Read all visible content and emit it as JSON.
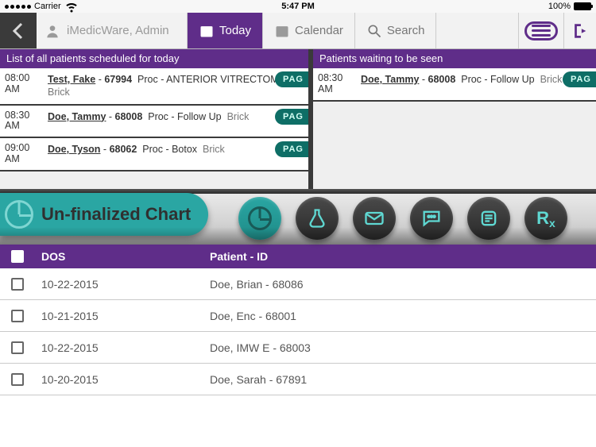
{
  "status": {
    "carrier": "Carrier",
    "wifi": "wifi",
    "time": "5:47 PM",
    "battery": "100%"
  },
  "nav": {
    "user": "iMedicWare, Admin",
    "today": "Today",
    "calendar": "Calendar",
    "search": "Search"
  },
  "headers": {
    "left": "List of all patients scheduled for today",
    "right": "Patients waiting to be seen"
  },
  "appointments_left": [
    {
      "time": "08:00 AM",
      "patient": "Test, Fake",
      "id": "67994",
      "proc": "Proc - ANTERIOR VITRECTOMY",
      "loc": "Brick",
      "tag": "PAG"
    },
    {
      "time": "08:30 AM",
      "patient": "Doe, Tammy",
      "id": "68008",
      "proc": "Proc - Follow Up",
      "loc": "Brick",
      "tag": "PAG"
    },
    {
      "time": "09:00 AM",
      "patient": "Doe, Tyson",
      "id": "68062",
      "proc": "Proc - Botox",
      "loc": "Brick",
      "tag": "PAG"
    }
  ],
  "appointments_right": [
    {
      "time": "08:30 AM",
      "patient": "Doe, Tammy",
      "id": "68008",
      "proc": "Proc - Follow Up",
      "loc": "Brick",
      "tag": "PAG"
    }
  ],
  "band": {
    "label": "Un-finalized Chart",
    "icons": [
      "chart",
      "flask",
      "mail",
      "chat",
      "note",
      "rx"
    ]
  },
  "table": {
    "columns": [
      "DOS",
      "Patient - ID"
    ],
    "rows": [
      {
        "dos": "10-22-2015",
        "patient": "Doe, Brian  - 68086"
      },
      {
        "dos": "10-21-2015",
        "patient": "Doe, Enc  - 68001"
      },
      {
        "dos": "10-22-2015",
        "patient": "Doe, IMW E - 68003"
      },
      {
        "dos": "10-20-2015",
        "patient": "Doe, Sarah  - 67891"
      }
    ]
  },
  "colors": {
    "purple": "#5f2d89",
    "teal": "#2aa6a3",
    "dark": "#3a3a3a"
  }
}
